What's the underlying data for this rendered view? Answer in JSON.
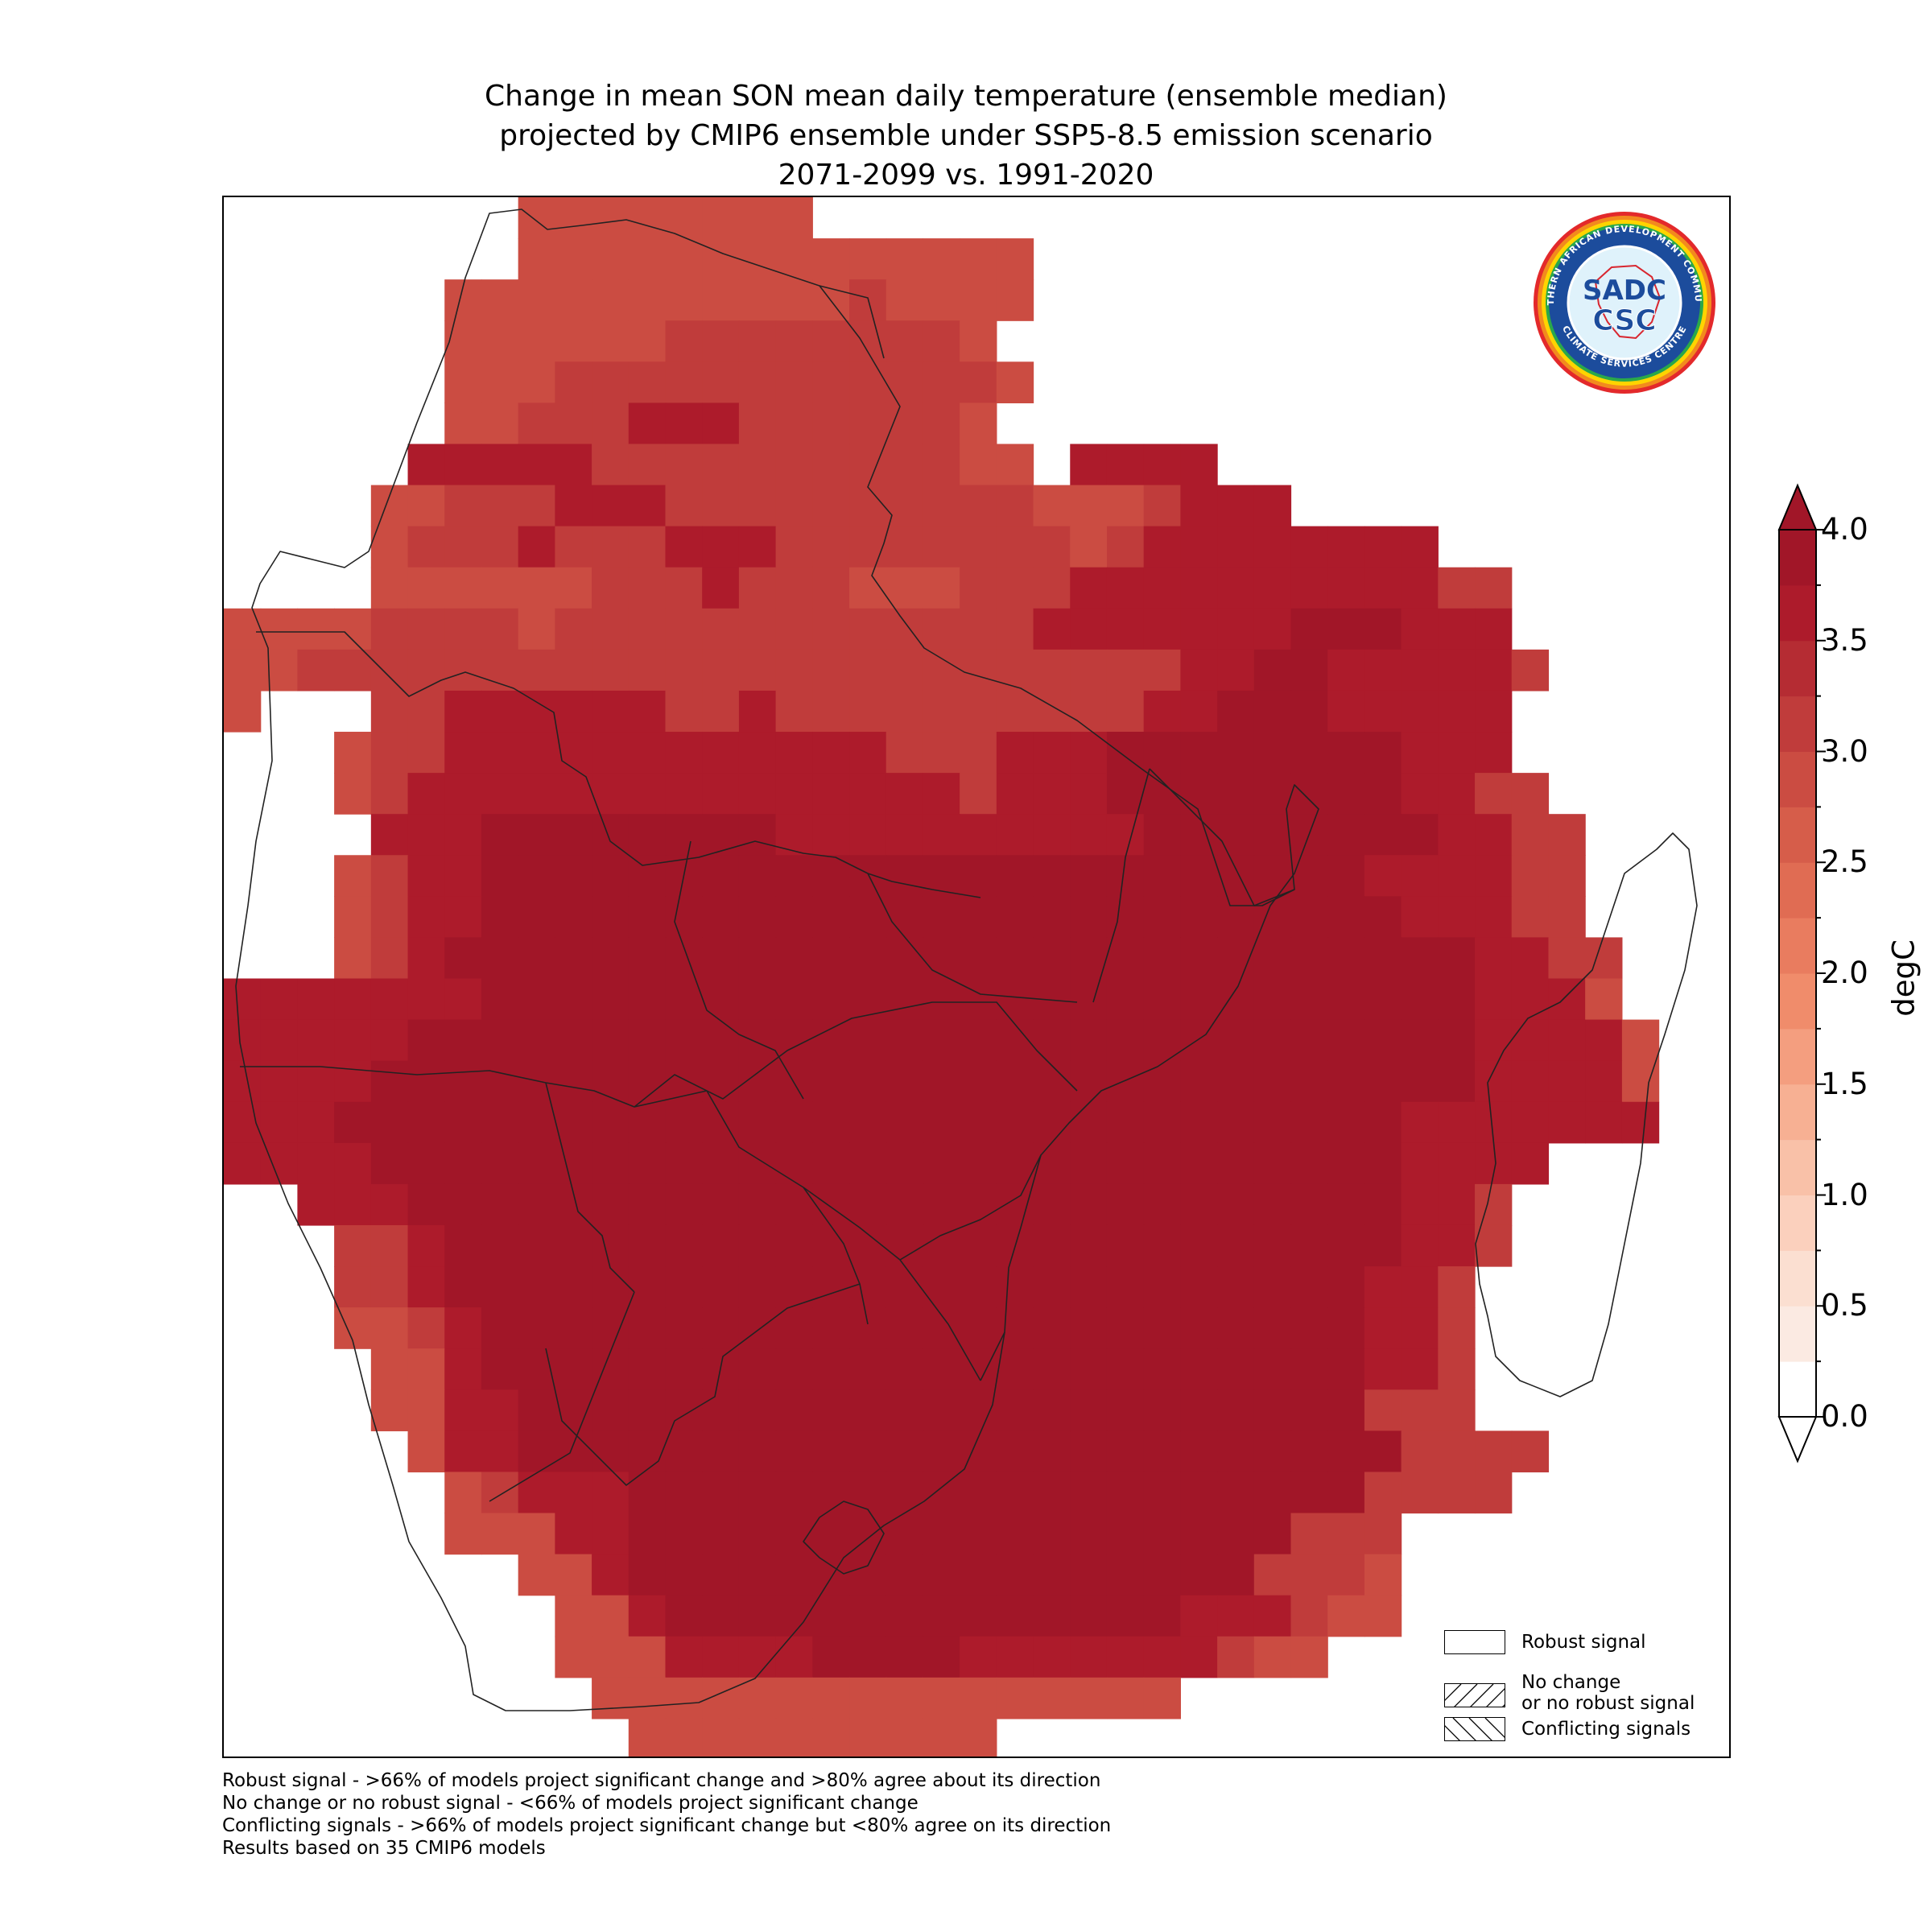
{
  "title": {
    "line1": "Change in mean SON mean daily temperature (ensemble median)",
    "line2": "projected by CMIP6 ensemble under SSP5-8.5 emission scenario",
    "line3": "2071-2099 vs. 1991-2020"
  },
  "logo": {
    "ring_text_top": "SOUTHERN AFRICAN DEVELOPMENT COMMUNITY",
    "ring_text_bottom": "CLIMATE SERVICES CENTRE",
    "mark_top": "SADC",
    "mark_bottom": "CSC"
  },
  "legend": {
    "robust": "Robust signal",
    "no_change_1": "No change",
    "no_change_2": "or no robust signal",
    "conflicting": "Conflicting signals"
  },
  "colorbar": {
    "units": "degC",
    "tick_labels": [
      "4.0",
      "3.5",
      "3.0",
      "2.5",
      "2.0",
      "1.5",
      "1.0",
      "0.5",
      "0.0"
    ],
    "ticks": [
      4.0,
      3.5,
      3.0,
      2.5,
      2.0,
      1.5,
      1.0,
      0.5,
      0.0
    ],
    "range": [
      0,
      4
    ],
    "step": 0.25,
    "extend": "both",
    "colors": [
      "#ffffff",
      "#fbeae2",
      "#fbdfd1",
      "#fbd0bd",
      "#f9c1a8",
      "#f7b093",
      "#f49e7f",
      "#f08c6b",
      "#e97c5f",
      "#e06c53",
      "#d65d4a",
      "#cb4c42",
      "#c03c3b",
      "#b52c33",
      "#ad1b2b",
      "#a11628"
    ],
    "over_color": "#a11628",
    "under_color": "#ffffff"
  },
  "chart_data": {
    "type": "heatmap",
    "grid_origin": "top-left",
    "cell_degrees": 1,
    "lon_range": [
      10,
      51
    ],
    "lat_range": [
      -36,
      6
    ],
    "rows": [
      "0000000 11111111 0000000000000000000000000",
      "0000000 1111111111111100000000000000000000",
      "000000111111111112111100000000000000000000",
      "000000111111222222221000000000000000000000",
      "000000111222222222222100000000000000000000",
      "000000112223332222221000000000000000000000",
      "000003333322222222221103333000000000000000",
      "0000112223332222222222111233300000000000000",
      "0000122232223332222222212333333330000000000",
      "0000111111222322211122233333333332200000000",
      "111122221222222222222233333334443330000000",
      "112222222222222222222222223344333332000000",
      "100022333333223222222222233444333330000000",
      "000122333333333333222333444444443330000000",
      "000123333333333333332333444444443322000000",
      "000033344444444333333333344444444332200000",
      "00012334444444444444444444444443333220000000",
      "000123344444444444444444444444443332200000000",
      "000123444444444444444444444444444433220000000",
      "33333334444444444444444444444444443331000000",
      "333334444444444444444444444444444433331000000",
      "333344444444444444444444444444444433331000000",
      "333444444444444444444444444444443333333000000",
      "333344444444444444444444444444443333000000000",
      "003334444444444444444444444444443320000000000",
      "000223444444444444444444444444443320000000000",
      "000223444444444444444444444444433200000000000",
      "000112344444444444444444444444433200000000000",
      "000011344444444444444444444444433200000000000",
      "000011334444444444444444444444422200000000000",
      "000001334444444444444444444444442222000000000",
      "000000123334444444444444444444422220000000000",
      "000000111334444444444444444442220000000000000",
      "000000001134444444444444444422210000000000000",
      "000000000113444444444444443332110000000000000",
      "000000000111333344443333333211000000000000000",
      "000000000011111111111111110000000000000000000",
      "000000000001111111111000000000000000000000000"
    ],
    "note": "rows are 1-degree cells read from the map; digit classes: 0=none, 1=2.75, 2=3.0, 3=3.5, 4=3.9 degC"
  },
  "notes": {
    "line1": "Robust signal - >66% of models project significant change and >80% agree about its direction",
    "line2": "No change or no robust signal - <66% of models project significant change",
    "line3": "Conflicting signals - >66% of models project significant change but <80% agree on its direction",
    "line4": "Results based on 35 CMIP6 models"
  }
}
